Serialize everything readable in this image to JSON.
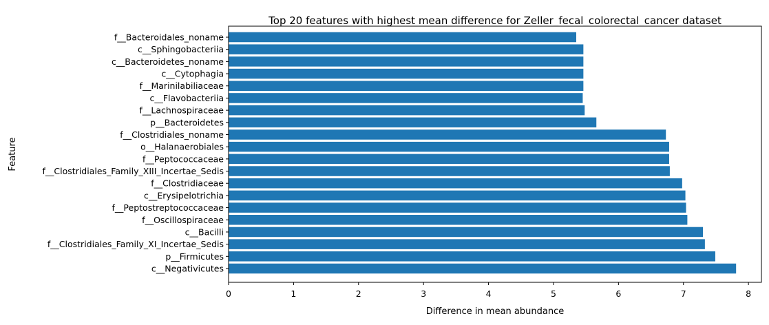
{
  "chart_data": {
    "type": "bar",
    "orientation": "horizontal",
    "title": "Top 20 features with highest mean difference for Zeller_fecal_colorectal_cancer dataset",
    "xlabel": "Difference in mean abundance",
    "ylabel": "Feature",
    "xlim": [
      0,
      8.2
    ],
    "xticks": [
      "0",
      "1",
      "2",
      "3",
      "4",
      "5",
      "6",
      "7",
      "8"
    ],
    "grid": false,
    "bar_color": "#1f77b4",
    "categories": [
      "f__Bacteroidales_noname",
      "c__Sphingobacteriia",
      "c__Bacteroidetes_noname",
      "c__Cytophagia",
      "f__Marinilabiliaceae",
      "c__Flavobacteriia",
      "f__Lachnospiraceae",
      "p__Bacteroidetes",
      "f__Clostridiales_noname",
      "o__Halanaerobiales",
      "f__Peptococcaceae",
      "f__Clostridiales_Family_XIII_Incertae_Sedis",
      "f__Clostridiaceae",
      "c__Erysipelotrichia",
      "f__Peptostreptococcaceae",
      "f__Oscillospiraceae",
      "c__Bacilli",
      "f__Clostridiales_Family_XI_Incertae_Sedis",
      "p__Firmicutes",
      "c__Negativicutes"
    ],
    "values": [
      5.35,
      5.46,
      5.46,
      5.46,
      5.46,
      5.45,
      5.48,
      5.66,
      6.73,
      6.78,
      6.78,
      6.79,
      6.98,
      7.03,
      7.04,
      7.06,
      7.3,
      7.33,
      7.49,
      7.81
    ]
  }
}
